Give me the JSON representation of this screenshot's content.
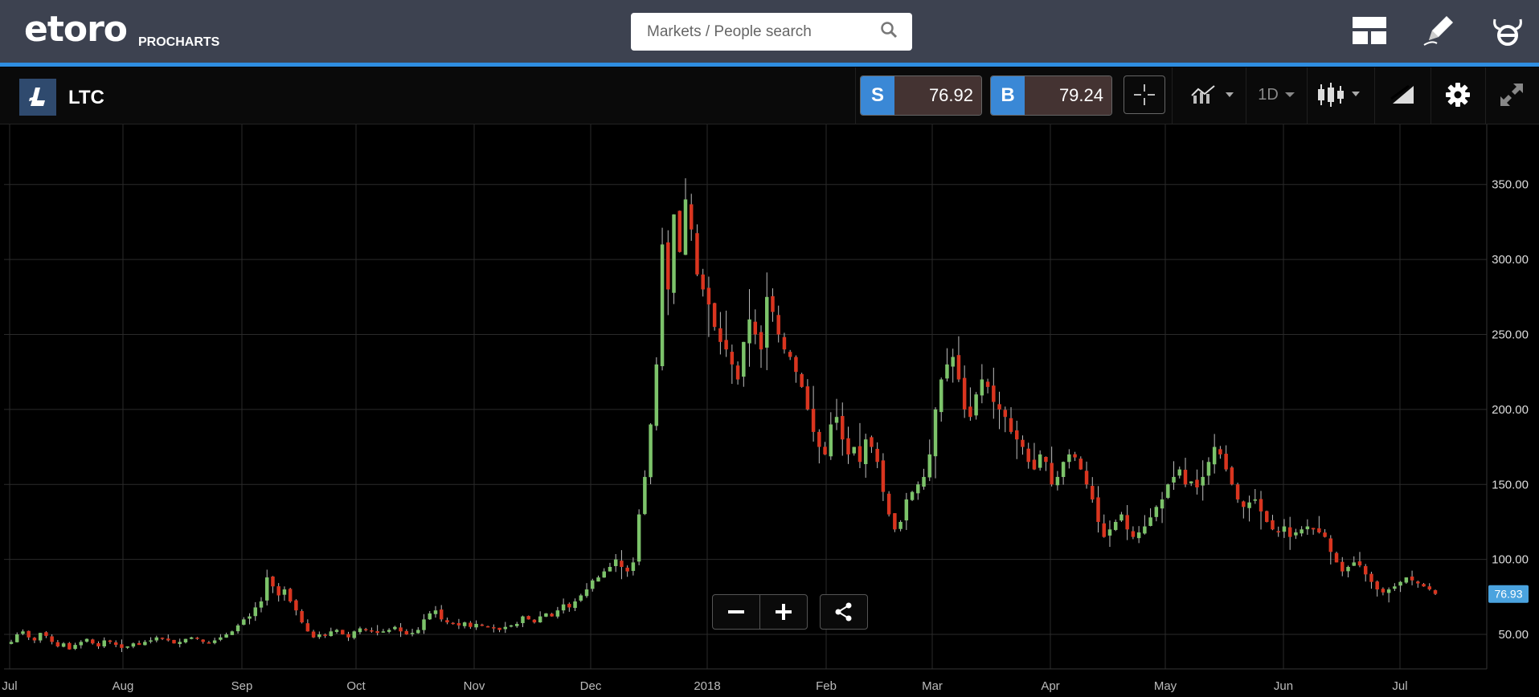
{
  "header": {
    "brand": "etoro",
    "brand_sub": "PROCHARTS",
    "search_placeholder": "Markets / People search"
  },
  "instrument": {
    "symbol": "LTC",
    "sell_label": "S",
    "sell_price": "76.92",
    "buy_label": "B",
    "buy_price": "79.24"
  },
  "toolbar": {
    "interval": "1D"
  },
  "colors": {
    "up": "#7cc36a",
    "down": "#d9351f",
    "accent": "#2f8ee1",
    "price_tag": "#4aa3df"
  },
  "chart_data": {
    "type": "candlestick",
    "x_ticks": [
      "Jul",
      "Aug",
      "Sep",
      "Oct",
      "Nov",
      "Dec",
      "2018",
      "Feb",
      "Mar",
      "Apr",
      "May",
      "Jun",
      "Jul"
    ],
    "y_ticks": [
      "350.00",
      "300.00",
      "250.00",
      "200.00",
      "150.00",
      "100.00",
      "50.00"
    ],
    "ylim": [
      27,
      390
    ],
    "last_price": "76.93",
    "grid": true,
    "closes": [
      45,
      50,
      52,
      48,
      46,
      51,
      49,
      45,
      42,
      44,
      40,
      43,
      45,
      47,
      44,
      42,
      46,
      45,
      43,
      41,
      42,
      44,
      43,
      45,
      46,
      48,
      47,
      46,
      44,
      45,
      47,
      48,
      47,
      45,
      44,
      46,
      48,
      50,
      52,
      56,
      60,
      62,
      68,
      72,
      88,
      82,
      76,
      80,
      72,
      66,
      58,
      52,
      48,
      50,
      49,
      52,
      53,
      50,
      48,
      52,
      54,
      53,
      52,
      51,
      52,
      53,
      55,
      52,
      50,
      51,
      53,
      60,
      64,
      66,
      60,
      58,
      57,
      56,
      58,
      55,
      57,
      56,
      55,
      54,
      53,
      55,
      56,
      57,
      62,
      60,
      58,
      62,
      64,
      62,
      66,
      70,
      68,
      72,
      76,
      80,
      86,
      88,
      92,
      95,
      100,
      95,
      92,
      98,
      130,
      155,
      190,
      230,
      310,
      280,
      330,
      305,
      340,
      320,
      290,
      280,
      270,
      255,
      245,
      240,
      230,
      220,
      245,
      260,
      250,
      240,
      275,
      265,
      250,
      240,
      235,
      225,
      215,
      200,
      185,
      175,
      170,
      190,
      195,
      180,
      170,
      175,
      165,
      180,
      175,
      165,
      145,
      130,
      120,
      125,
      140,
      145,
      150,
      155,
      170,
      200,
      220,
      230,
      235,
      220,
      200,
      195,
      210,
      220,
      215,
      205,
      200,
      195,
      185,
      180,
      175,
      165,
      160,
      170,
      165,
      150,
      155,
      165,
      170,
      168,
      160,
      150,
      140,
      125,
      115,
      120,
      125,
      130,
      120,
      115,
      118,
      122,
      128,
      135,
      140,
      150,
      155,
      160,
      150,
      152,
      148,
      155,
      165,
      175,
      170,
      160,
      150,
      140,
      135,
      138,
      140,
      132,
      125,
      120,
      118,
      122,
      115,
      118,
      120,
      122,
      120,
      118,
      115,
      105,
      98,
      92,
      95,
      98,
      96,
      90,
      85,
      80,
      78,
      80,
      82,
      85,
      88,
      86,
      84,
      82,
      80,
      77
    ]
  }
}
